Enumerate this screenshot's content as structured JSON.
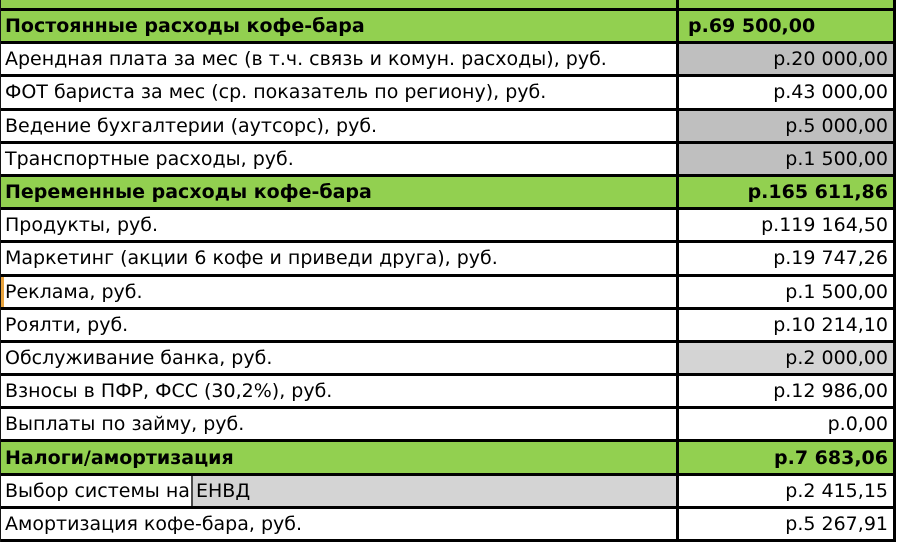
{
  "app": {
    "description": "Spreadsheet fragment: coffee-bar monthly expenses",
    "currency_prefix": "р."
  },
  "colors": {
    "section_green": "#92D050",
    "gray_dark": "#BFBFBF",
    "gray_light": "#D4D4D4",
    "grid_border": "#000000",
    "marker_orange": "#E8A33D",
    "text": "#000000"
  },
  "table": {
    "rows": [
      {
        "label": "Постоянные расходы кофе-бара",
        "value": "р.69 500,00",
        "type": "section",
        "value_align": "left"
      },
      {
        "label": "Арендная плата за мес (в т.ч. связь и комун. расходы), руб.",
        "value": "р.20 000,00",
        "type": "item",
        "value_bg": "gray_dark"
      },
      {
        "label": "ФОТ бариста за мес (ср. показатель по региону), руб.",
        "value": "р.43 000,00",
        "type": "item"
      },
      {
        "label": "Ведение бухгалтерии (аутсорс), руб.",
        "value": "р.5 000,00",
        "type": "item",
        "value_bg": "gray_dark"
      },
      {
        "label": "Транспортные расходы, руб.",
        "value": "р.1 500,00",
        "type": "item",
        "value_bg": "gray_dark"
      },
      {
        "label": "Переменные расходы кофе-бара",
        "value": "р.165 611,86",
        "type": "section"
      },
      {
        "label": "Продукты, руб.",
        "value": "р.119 164,50",
        "type": "item"
      },
      {
        "label": "Маркетинг (акции 6 кофе и приведи друга), руб.",
        "value": "р.19 747,26",
        "type": "item"
      },
      {
        "label": "Реклама, руб.",
        "value": "р.1 500,00",
        "type": "item",
        "left_marker": true
      },
      {
        "label": "Роялти, руб.",
        "value": "р.10 214,10",
        "type": "item"
      },
      {
        "label": "Обслуживание банка, руб.",
        "value": "р.2 000,00",
        "type": "item",
        "value_bg": "gray_light"
      },
      {
        "label": "Взносы в ПФР, ФСС (30,2%), руб.",
        "value": "р.12 986,00",
        "type": "item"
      },
      {
        "label": "Выплаты по займу, руб.",
        "value": "р.0,00",
        "type": "item"
      },
      {
        "label": "Налоги/амортизация",
        "value": "р.7 683,06",
        "type": "section"
      },
      {
        "label": "Выбор системы на",
        "overlay": "ЕНВД",
        "value": "р.2 415,15",
        "type": "item"
      },
      {
        "label": "Амортизация кофе-бара, руб.",
        "value": "р.5 267,91",
        "type": "item"
      }
    ]
  }
}
